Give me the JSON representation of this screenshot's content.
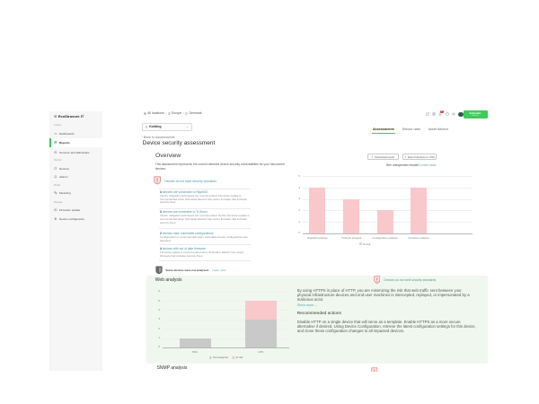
{
  "sidebar": {
    "logo": "EcoStruxure IT",
    "groups": [
      {
        "label": "Assess",
        "items": [
          {
            "label": "Dashboards",
            "icon": "dashboards-icon",
            "active": false
          },
          {
            "label": "Reports",
            "icon": "reports-icon",
            "active": true
          },
          {
            "label": "Services and Warranties",
            "icon": "services-icon",
            "active": false
          }
        ]
      },
      {
        "label": "Monitor",
        "items": [
          {
            "label": "Devices",
            "icon": "devices-icon",
            "active": false
          },
          {
            "label": "Alarms",
            "icon": "alarms-icon",
            "active": false
          }
        ]
      },
      {
        "label": "Model",
        "items": [
          {
            "label": "Modeling",
            "icon": "modeling-icon",
            "active": false
          }
        ]
      },
      {
        "label": "Manage",
        "items": [
          {
            "label": "Firmware update",
            "icon": "firmware-update-icon",
            "active": false
          },
          {
            "label": "Device configuration",
            "icon": "device-configuration-icon",
            "active": false
          }
        ]
      }
    ]
  },
  "topbar": {
    "breadcrumb": [
      {
        "label": "All locations",
        "icon": "locations-icon"
      },
      {
        "label": "Europe",
        "icon": "building-icon"
      },
      {
        "label": "Denmark",
        "icon": "building-icon"
      }
    ],
    "breadcrumb_separator": "/",
    "location_selector": {
      "value": "Kolding",
      "icon": "building-icon"
    },
    "icons": [
      {
        "name": "launch-icon"
      },
      {
        "name": "apps-icon"
      },
      {
        "name": "notifications-icon",
        "badge": "9+"
      },
      {
        "name": "help-icon"
      },
      {
        "name": "settings-icon"
      },
      {
        "name": "avatar"
      }
    ],
    "brand": {
      "line1": "Schneider",
      "line2": "Electric"
    }
  },
  "tabs": [
    {
      "label": "Assessments",
      "active": true
    },
    {
      "label": "Sensor data",
      "active": false
    },
    {
      "label": "Asset Advisor",
      "active": false
    }
  ],
  "page": {
    "back_link": "Back to Assessments",
    "title": "Device security assessment"
  },
  "overview": {
    "heading": "Overview",
    "description": "This assessment represents the current detected device security vulnerabilities for your discovered devices.",
    "buttons": [
      {
        "label": "Download report"
      },
      {
        "label": "Export devices to CSV"
      }
    ],
    "results_hint": {
      "question": "See unexpected results?",
      "link": "Learn more"
    },
    "alert": "Devices do not meet security standards",
    "findings": [
      {
        "count": "4",
        "label": "devices are vulnerable to Ripple20",
        "description": "Interim mitigation techniques are recommended. Firmware update is recommended when Schneider Electric has newer firmware that includes security fixes."
      },
      {
        "count": "3",
        "label": "devices are vulnerable to TLStorm",
        "description": "Interim mitigation techniques are recommended. Device firmware update is recommended when Schneider Electric has newer firmware that includes security fixes."
      },
      {
        "count": "2",
        "label": "devices have vulnerable configurations",
        "description": "Configuration is recommended when vulnerable device configurations are detected."
      },
      {
        "count": "4",
        "label": "devices with out of date firmware",
        "description": "Firmware update is recommended when Schneider Electric has newer firmware that includes security fixes."
      }
    ],
    "footnote": {
      "text": "Some devices were not analyzed.",
      "link": "Learn more"
    }
  },
  "web_analysis": {
    "heading": "Web analysis",
    "alert": "Devices do not meet security standards",
    "paragraph": "By using HTTPS in place of HTTP, you are minimizing the risk that web traffic sent between your physical infrastructure devices and end user machines is intercepted, replayed, or impersonated by a malicious actor.",
    "show_more": "Show more",
    "recommended": {
      "heading": "Recommended actions",
      "body": "Disable HTTP on a single device that will serve as a template. Enable HTTPS as a more secure alternative if desired. Using Device Configuration, retrieve the latest configuration settings for this device, and clone these configuration changes to all impacted devices."
    }
  },
  "snmp": {
    "heading": "SNMP analysis"
  },
  "chart_data": [
    {
      "type": "bar",
      "title": "Overview security analyses",
      "categories": [
        "Ripple20 analysis",
        "TLStorm analysis",
        "Configuration analysis",
        "Firmware analysis"
      ],
      "series": [
        {
          "name": "At risk",
          "color": "#f8c8cb",
          "values": [
            4,
            3,
            2,
            4
          ]
        }
      ],
      "xlabel": "",
      "ylabel": "",
      "ylim": [
        0,
        5
      ],
      "grid": true,
      "legend_position": "bottom"
    },
    {
      "type": "bar",
      "stacked": true,
      "title": "Web analysis by device type",
      "categories": [
        "PDU",
        "UPS"
      ],
      "series": [
        {
          "name": "Not analyzed",
          "color": "#c9c9c9",
          "values": [
            1,
            3
          ]
        },
        {
          "name": "At risk",
          "color": "#f8c8cb",
          "values": [
            0,
            2
          ]
        }
      ],
      "xlabel": "",
      "ylabel": "",
      "ylim": [
        0,
        6
      ],
      "grid": true,
      "legend_position": "bottom"
    }
  ],
  "colors": {
    "accent_green": "#3dcd58",
    "link_teal": "#58a1ad",
    "finding_link": "#4d97a3",
    "alert_red": "#d95757",
    "alert_fill": "#fbe4e4",
    "bar_pink": "#f8c8cb",
    "bar_gray": "#c9c9c9",
    "panel_green": "#f2f8f1",
    "sidebar_bg": "#f5f6f5"
  }
}
